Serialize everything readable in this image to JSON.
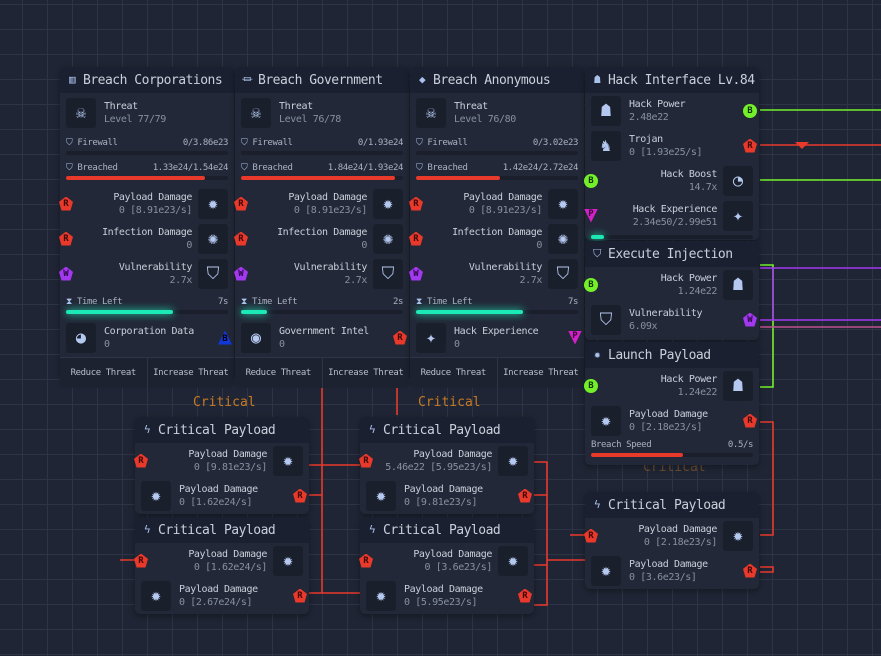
{
  "colors": {
    "red": "#e8392b",
    "green": "#74f02a",
    "purple": "#a238f0",
    "magenta": "#d022c8",
    "teal": "#1de9b6",
    "blue": "#1038d8"
  },
  "breach_nodes": [
    {
      "title": "Breach Corporations",
      "icon": "building-icon",
      "threat_label": "Threat",
      "threat_level": "Level 77/79",
      "firewall_label": "Firewall",
      "firewall_value": "0/3.86e23",
      "firewall_progress": 0,
      "breached_label": "Breached",
      "breached_value": "1.33e24/1.54e24",
      "breached_progress": 0.86,
      "stats": [
        {
          "label": "Payload Damage",
          "value": "0 [8.91e23/s]",
          "port": "R",
          "icon": "burst-icon"
        },
        {
          "label": "Infection Damage",
          "value": "0",
          "port": "R",
          "icon": "virus-icon"
        },
        {
          "label": "Vulnerability",
          "value": "2.7x",
          "port": "W",
          "icon": "shield-icon"
        }
      ],
      "time_label": "Time Left",
      "time_value": "7s",
      "time_progress": 0.66,
      "output": {
        "label": "Corporation Data",
        "value": "0",
        "port": "B",
        "icon": "pie-chart-icon"
      },
      "buttons": [
        "Reduce Threat",
        "Increase Threat"
      ]
    },
    {
      "title": "Breach Government",
      "icon": "bank-icon",
      "threat_label": "Threat",
      "threat_level": "Level 76/78",
      "firewall_label": "Firewall",
      "firewall_value": "0/1.93e24",
      "firewall_progress": 0,
      "breached_label": "Breached",
      "breached_value": "1.84e24/1.93e24",
      "breached_progress": 0.95,
      "stats": [
        {
          "label": "Payload Damage",
          "value": "0 [8.91e23/s]",
          "port": "R",
          "icon": "burst-icon"
        },
        {
          "label": "Infection Damage",
          "value": "0",
          "port": "R",
          "icon": "virus-icon"
        },
        {
          "label": "Vulnerability",
          "value": "2.7x",
          "port": "W",
          "icon": "shield-icon"
        }
      ],
      "time_label": "Time Left",
      "time_value": "2s",
      "time_progress": 0.16,
      "output": {
        "label": "Government Intel",
        "value": "0",
        "port": "R",
        "icon": "eye-icon"
      },
      "buttons": [
        "Reduce Threat",
        "Increase Threat"
      ]
    },
    {
      "title": "Breach Anonymous",
      "icon": "spy-icon",
      "threat_label": "Threat",
      "threat_level": "Level 76/80",
      "firewall_label": "Firewall",
      "firewall_value": "0/3.02e23",
      "firewall_progress": 0,
      "breached_label": "Breached",
      "breached_value": "1.42e24/2.72e24",
      "breached_progress": 0.52,
      "stats": [
        {
          "label": "Payload Damage",
          "value": "0 [8.91e23/s]",
          "port": "R",
          "icon": "burst-icon"
        },
        {
          "label": "Infection Damage",
          "value": "0",
          "port": "R",
          "icon": "virus-icon"
        },
        {
          "label": "Vulnerability",
          "value": "2.7x",
          "port": "W",
          "icon": "shield-icon"
        }
      ],
      "time_label": "Time Left",
      "time_value": "7s",
      "time_progress": 0.66,
      "output": {
        "label": "Hack Experience",
        "value": "0",
        "port": "P",
        "icon": "sparkles-icon"
      },
      "buttons": [
        "Reduce Threat",
        "Increase Threat"
      ]
    }
  ],
  "hack_interface": {
    "title": "Hack Interface Lv.84",
    "icon": "hacker-icon",
    "rows": [
      {
        "dir": "out",
        "label": "Hack Power",
        "value": "2.48e22",
        "port": "G",
        "icon": "hacker-icon"
      },
      {
        "dir": "out",
        "label": "Trojan",
        "value": "0 [1.93e25/s]",
        "port": "R",
        "icon": "knight-icon"
      },
      {
        "dir": "in",
        "label": "Hack Boost",
        "value": "14.7x",
        "port": "G",
        "icon": "gauge-icon"
      },
      {
        "dir": "in",
        "label": "Hack Experience",
        "value": "2.34e50/2.99e51",
        "port": "P",
        "icon": "sparkles-icon"
      }
    ],
    "experience_progress": 0.08
  },
  "execute_injection": {
    "title": "Execute Injection",
    "icon": "shield-icon",
    "rows": [
      {
        "dir": "in",
        "label": "Hack Power",
        "value": "1.24e22",
        "port": "G",
        "icon": "hacker-icon"
      },
      {
        "dir": "out",
        "label": "Vulnerability",
        "value": "6.09x",
        "port": "W",
        "icon": "shield-icon"
      }
    ]
  },
  "launch_payload": {
    "title": "Launch Payload",
    "icon": "burst-icon",
    "rows": [
      {
        "dir": "in",
        "label": "Hack Power",
        "value": "1.24e22",
        "port": "G",
        "icon": "hacker-icon"
      },
      {
        "dir": "out",
        "label": "Payload Damage",
        "value": "0 [2.18e23/s]",
        "port": "R",
        "icon": "burst-icon"
      }
    ],
    "speed_label": "Breach Speed",
    "speed_value": "0.5/s",
    "speed_progress": 0.57
  },
  "group_labels": [
    "Critical",
    "Critical",
    "Critical"
  ],
  "critical_nodes": [
    {
      "title": "Critical Payload",
      "in": {
        "label": "Payload Damage",
        "value": "0 [9.81e23/s]"
      },
      "out": {
        "label": "Payload Damage",
        "value": "0 [1.62e24/s]"
      }
    },
    {
      "title": "Critical Payload",
      "in": {
        "label": "Payload Damage",
        "value": "0 [1.62e24/s]"
      },
      "out": {
        "label": "Payload Damage",
        "value": "0 [2.67e24/s]"
      }
    },
    {
      "title": "Critical Payload",
      "in": {
        "label": "Payload Damage",
        "value": "5.46e22 [5.95e23/s]"
      },
      "out": {
        "label": "Payload Damage",
        "value": "0 [9.81e23/s]"
      }
    },
    {
      "title": "Critical Payload",
      "in": {
        "label": "Payload Damage",
        "value": "0 [3.6e23/s]"
      },
      "out": {
        "label": "Payload Damage",
        "value": "0 [5.95e23/s]"
      }
    },
    {
      "title": "Critical Payload",
      "in": {
        "label": "Payload Damage",
        "value": "0 [2.18e23/s]"
      },
      "out": {
        "label": "Payload Damage",
        "value": "0 [3.6e23/s]"
      }
    }
  ]
}
